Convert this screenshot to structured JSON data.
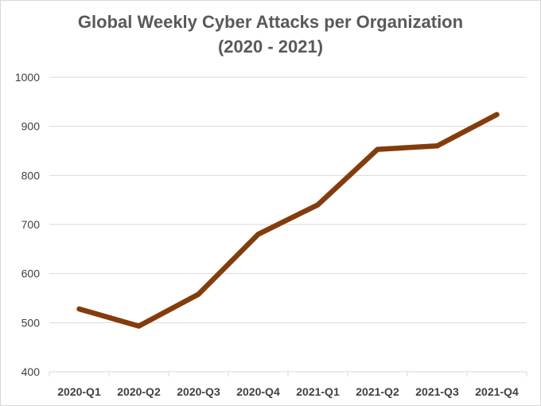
{
  "chart_data": {
    "type": "line",
    "title": "Global Weekly Cyber Attacks per Organization",
    "subtitle": "(2020 - 2021)",
    "xlabel": "",
    "ylabel": "",
    "categories": [
      "2020-Q1",
      "2020-Q2",
      "2020-Q3",
      "2020-Q4",
      "2021-Q1",
      "2021-Q2",
      "2021-Q3",
      "2021-Q4"
    ],
    "series": [
      {
        "values": [
          528,
          493,
          558,
          680,
          740,
          853,
          860,
          924
        ]
      }
    ],
    "ylim": [
      400,
      1000
    ],
    "yticks": [
      400,
      500,
      600,
      700,
      800,
      900,
      1000
    ],
    "grid": true,
    "legend": "none",
    "colors": {
      "line": "#843c0c",
      "grid": "#d9d9d9",
      "text": "#404040",
      "title": "#595959"
    }
  }
}
